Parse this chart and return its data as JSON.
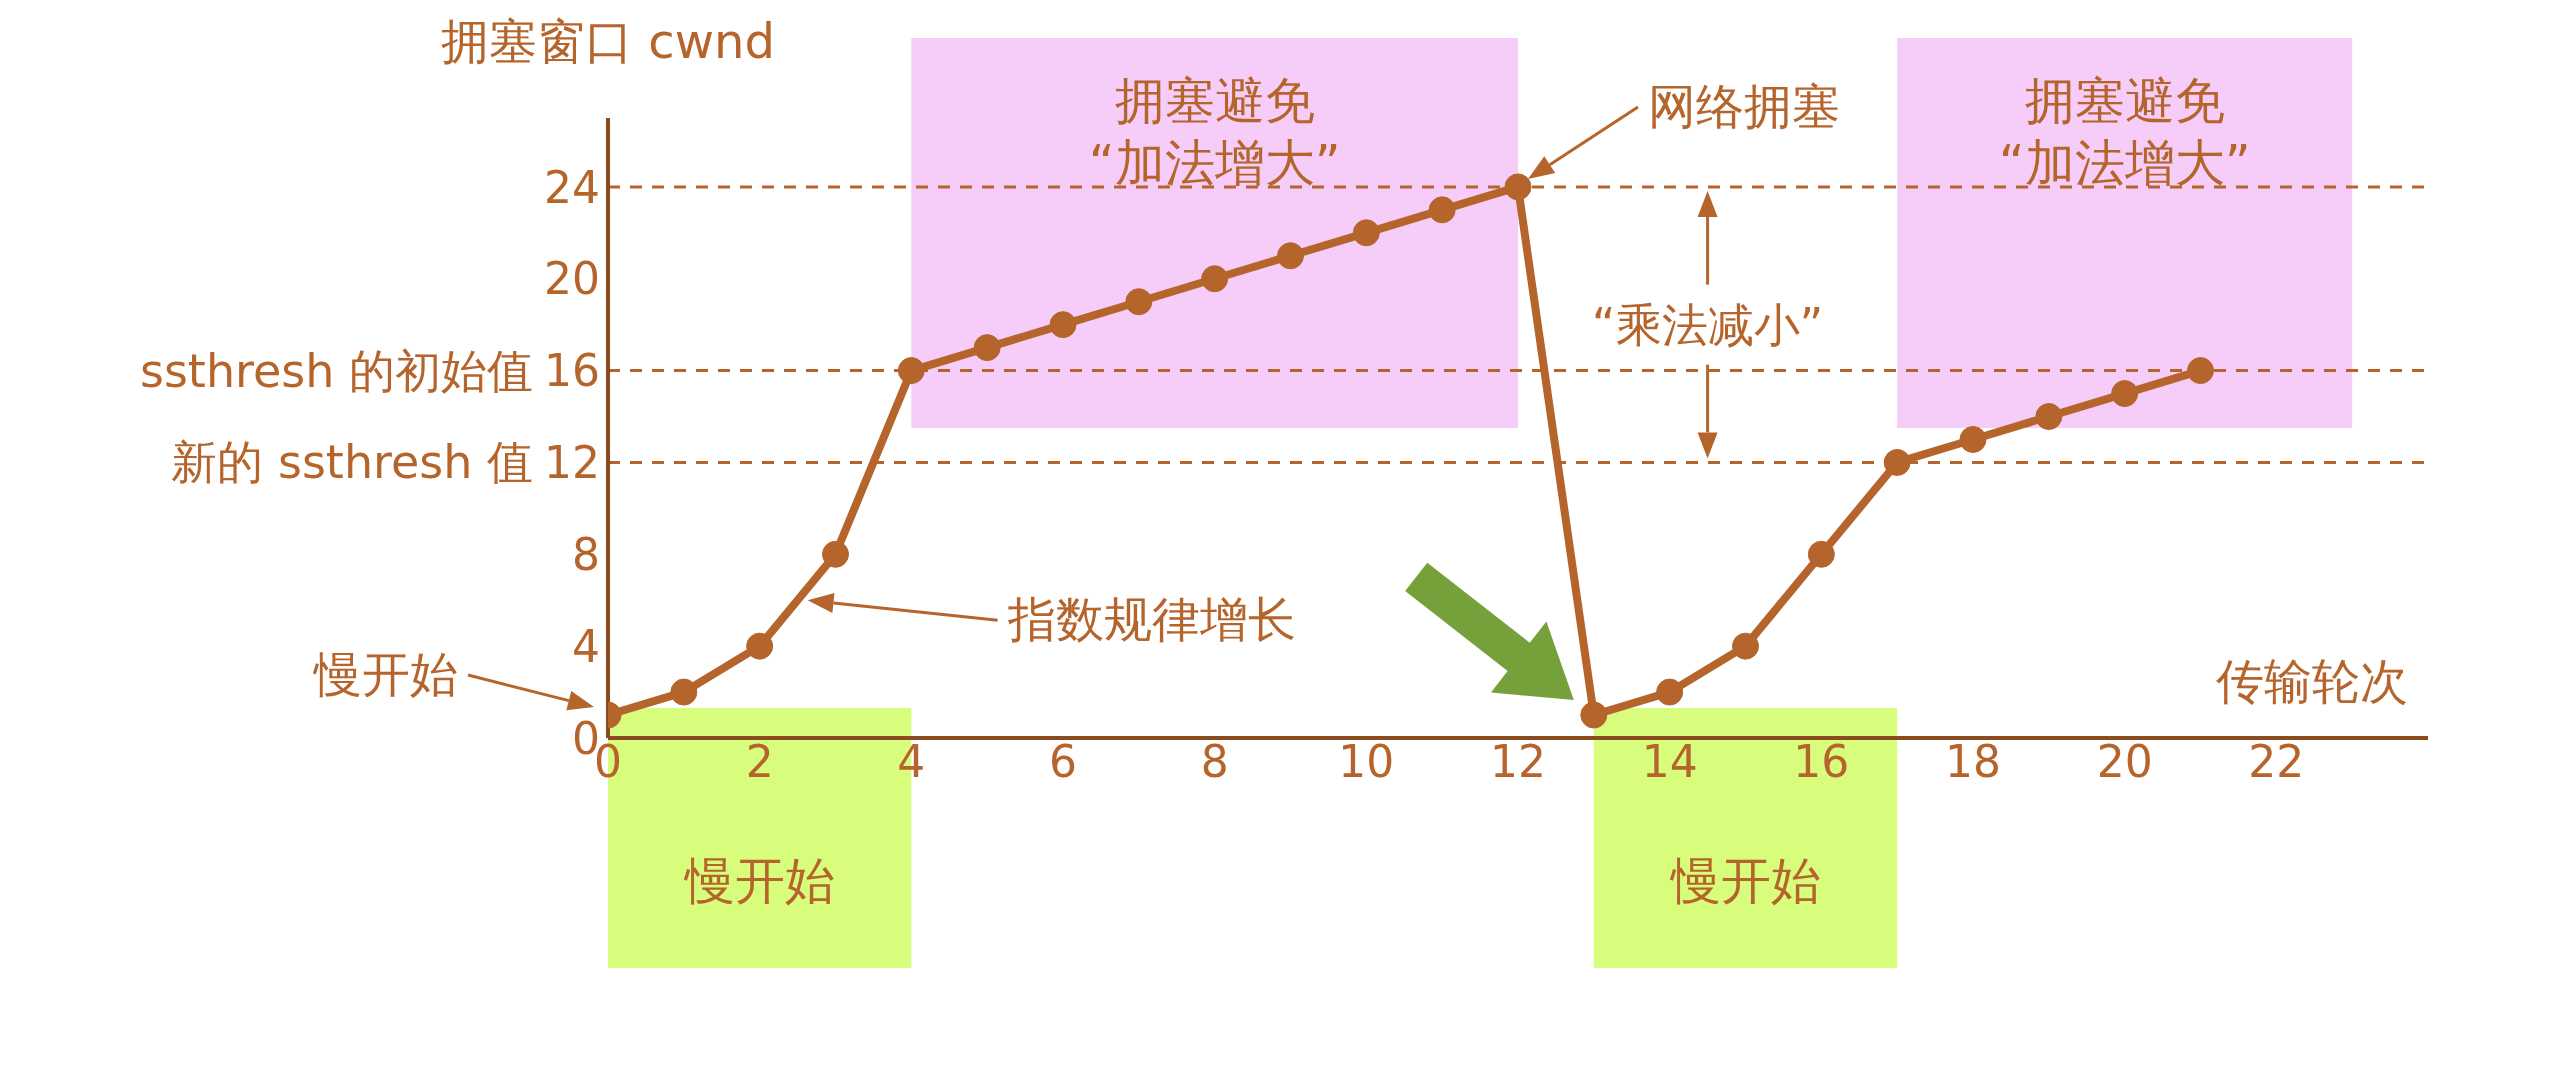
{
  "chart_data": {
    "type": "line",
    "xlabel": "传输轮次",
    "ylabel": "拥塞窗口 cwnd",
    "x": [
      0,
      1,
      2,
      3,
      4,
      5,
      6,
      7,
      8,
      9,
      10,
      11,
      12,
      13,
      14,
      15,
      16,
      17,
      18,
      19,
      20,
      21
    ],
    "values": [
      1,
      2,
      4,
      8,
      16,
      17,
      18,
      19,
      20,
      21,
      22,
      23,
      24,
      1,
      2,
      4,
      8,
      12,
      13,
      14,
      15,
      16
    ],
    "color": "#b5652b",
    "marker": "circle",
    "line_style": "solid",
    "xlim": [
      0,
      24
    ],
    "xticks": [
      0,
      2,
      4,
      6,
      8,
      10,
      12,
      14,
      16,
      18,
      20,
      22
    ],
    "ylim": [
      0,
      27
    ],
    "yticks": [
      0,
      4,
      8,
      12,
      16,
      20,
      24
    ],
    "grid": false,
    "ref_lines": [
      {
        "axis": "y",
        "value": 24,
        "label": null,
        "line_style": "dashed",
        "color": "#b5652b"
      },
      {
        "axis": "y",
        "value": 16,
        "label": "ssthresh 的初始值",
        "line_style": "dashed",
        "color": "#b5652b"
      },
      {
        "axis": "y",
        "value": 12,
        "label": "新的 ssthresh 值",
        "line_style": "dashed",
        "color": "#b5652b"
      }
    ],
    "bands": [
      {
        "axis": "x",
        "from": 0,
        "to": 4,
        "label": "慢开始",
        "color": "#d8fc7c"
      },
      {
        "axis": "x",
        "from": 4,
        "to": 12,
        "label": "拥塞避免\n“加法增大”",
        "color": "#f5cdf8"
      },
      {
        "axis": "x",
        "from": 13,
        "to": 17,
        "label": "慢开始",
        "color": "#d8fc7c"
      },
      {
        "axis": "x",
        "from": 17,
        "to": 23,
        "label": "拥塞避免\n“加法增大”",
        "color": "#f5cdf8"
      }
    ],
    "annotations": [
      "慢开始",
      "指数规律增长",
      "网络拥塞",
      "“乘法减小”"
    ]
  }
}
